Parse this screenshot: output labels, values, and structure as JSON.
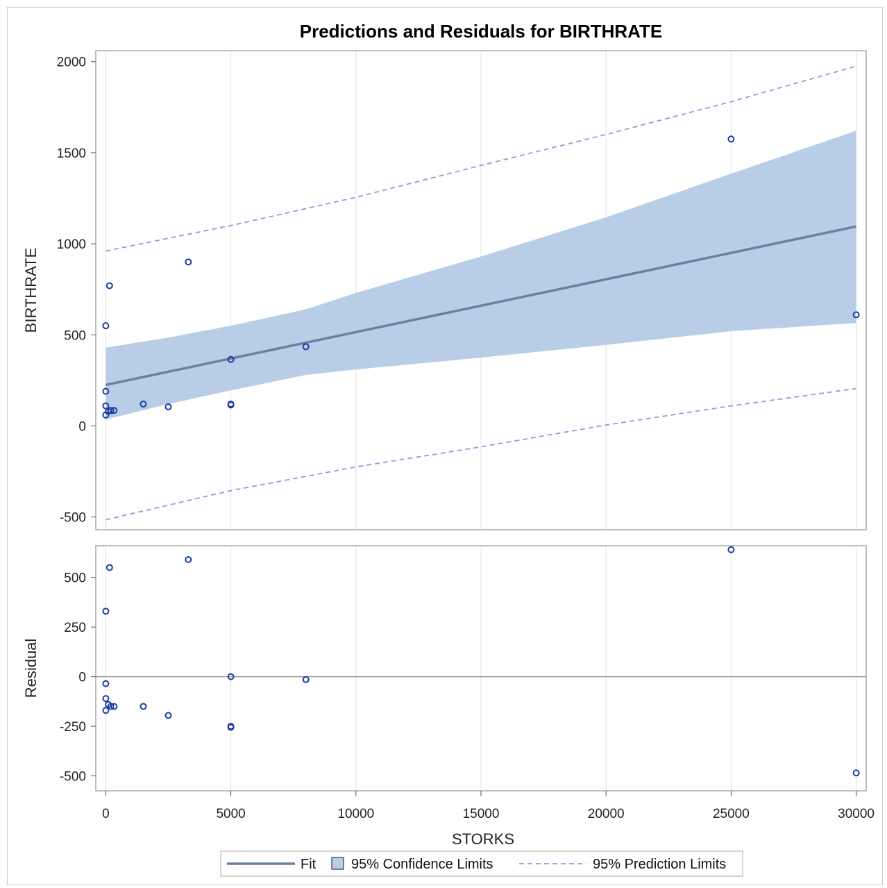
{
  "chart_data": {
    "type": "scatter",
    "title": "Predictions and Residuals for BIRTHRATE",
    "xlabel": "STORKS",
    "x_ticks": [
      0,
      5000,
      10000,
      15000,
      20000,
      25000,
      30000
    ],
    "xlim": [
      -400,
      30400
    ],
    "grid": true,
    "legend_position": "bottom-center",
    "colors": {
      "fit": "#6b7fa3",
      "confidence": "#b8cde6",
      "prediction": "#8a9fd8",
      "marker": "#1c3ea0",
      "zero_line": "#9a9a9a",
      "grid": "#e0e0e0",
      "frame": "#a8a8a8"
    },
    "panels": [
      {
        "name": "predictions",
        "ylabel": "BIRTHRATE",
        "ylim": [
          -570,
          2060
        ],
        "y_ticks": [
          -500,
          0,
          500,
          1000,
          1500,
          2000
        ],
        "points": [
          {
            "x": 0,
            "y": 550
          },
          {
            "x": 0,
            "y": 190
          },
          {
            "x": 0,
            "y": 110
          },
          {
            "x": 0,
            "y": 60
          },
          {
            "x": 100,
            "y": 80
          },
          {
            "x": 150,
            "y": 770
          },
          {
            "x": 200,
            "y": 85
          },
          {
            "x": 330,
            "y": 85
          },
          {
            "x": 1500,
            "y": 120
          },
          {
            "x": 2500,
            "y": 105
          },
          {
            "x": 3300,
            "y": 900
          },
          {
            "x": 5000,
            "y": 365
          },
          {
            "x": 5000,
            "y": 120
          },
          {
            "x": 5000,
            "y": 115
          },
          {
            "x": 8000,
            "y": 435
          },
          {
            "x": 25000,
            "y": 1575
          },
          {
            "x": 30000,
            "y": 610
          }
        ],
        "fit": [
          {
            "x": 0,
            "y": 225
          },
          {
            "x": 30000,
            "y": 1095
          }
        ],
        "confidence_upper": [
          {
            "x": 0,
            "y": 430
          },
          {
            "x": 2500,
            "y": 485
          },
          {
            "x": 5000,
            "y": 550
          },
          {
            "x": 8000,
            "y": 640
          },
          {
            "x": 10000,
            "y": 730
          },
          {
            "x": 15000,
            "y": 930
          },
          {
            "x": 20000,
            "y": 1145
          },
          {
            "x": 25000,
            "y": 1385
          },
          {
            "x": 30000,
            "y": 1620
          }
        ],
        "confidence_lower": [
          {
            "x": 0,
            "y": 35
          },
          {
            "x": 2500,
            "y": 120
          },
          {
            "x": 5000,
            "y": 195
          },
          {
            "x": 8000,
            "y": 280
          },
          {
            "x": 10000,
            "y": 310
          },
          {
            "x": 15000,
            "y": 375
          },
          {
            "x": 20000,
            "y": 445
          },
          {
            "x": 25000,
            "y": 520
          },
          {
            "x": 30000,
            "y": 565
          }
        ],
        "prediction_upper": [
          {
            "x": 0,
            "y": 960
          },
          {
            "x": 5000,
            "y": 1100
          },
          {
            "x": 10000,
            "y": 1255
          },
          {
            "x": 15000,
            "y": 1430
          },
          {
            "x": 20000,
            "y": 1600
          },
          {
            "x": 25000,
            "y": 1780
          },
          {
            "x": 30000,
            "y": 1975
          }
        ],
        "prediction_lower": [
          {
            "x": 0,
            "y": -515
          },
          {
            "x": 5000,
            "y": -355
          },
          {
            "x": 10000,
            "y": -225
          },
          {
            "x": 15000,
            "y": -115
          },
          {
            "x": 20000,
            "y": 5
          },
          {
            "x": 25000,
            "y": 110
          },
          {
            "x": 30000,
            "y": 205
          }
        ]
      },
      {
        "name": "residuals",
        "ylabel": "Residual",
        "ylim": [
          -575,
          660
        ],
        "y_ticks": [
          -500,
          -250,
          0,
          250,
          500
        ],
        "zero_line": 0,
        "points": [
          {
            "x": 0,
            "y": 330
          },
          {
            "x": 0,
            "y": -35
          },
          {
            "x": 0,
            "y": -110
          },
          {
            "x": 0,
            "y": -170
          },
          {
            "x": 100,
            "y": -140
          },
          {
            "x": 150,
            "y": 550
          },
          {
            "x": 200,
            "y": -150
          },
          {
            "x": 330,
            "y": -150
          },
          {
            "x": 1500,
            "y": -150
          },
          {
            "x": 2500,
            "y": -195
          },
          {
            "x": 3300,
            "y": 590
          },
          {
            "x": 5000,
            "y": 0
          },
          {
            "x": 5000,
            "y": -250
          },
          {
            "x": 5000,
            "y": -255
          },
          {
            "x": 8000,
            "y": -15
          },
          {
            "x": 25000,
            "y": 640
          },
          {
            "x": 30000,
            "y": -485
          }
        ]
      }
    ],
    "legend": [
      {
        "type": "line",
        "label": "Fit"
      },
      {
        "type": "band",
        "label": "95% Confidence Limits"
      },
      {
        "type": "dashed",
        "label": "95% Prediction Limits"
      }
    ]
  }
}
